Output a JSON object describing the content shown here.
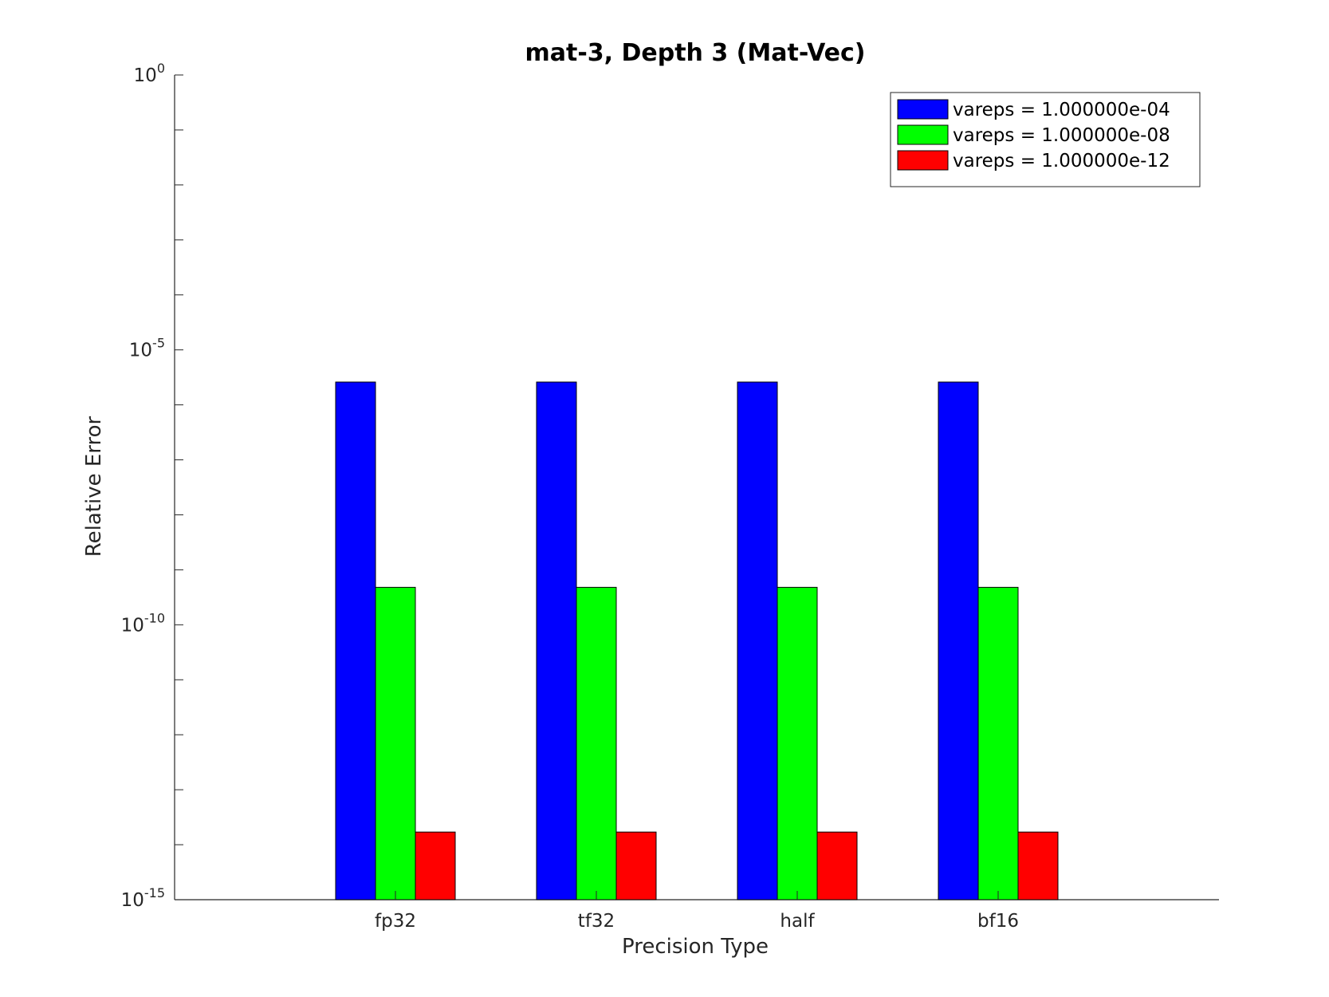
{
  "chart_data": {
    "type": "bar",
    "title": "mat-3, Depth 3 (Mat-Vec)",
    "xlabel": "Precision Type",
    "ylabel": "Relative Error",
    "categories": [
      "fp32",
      "tf32",
      "half",
      "bf16"
    ],
    "yscale": "log",
    "ylim": [
      1e-15,
      1
    ],
    "yticks": [
      {
        "base": "10",
        "exp": "0",
        "value": 1
      },
      {
        "base": "10",
        "exp": "-5",
        "value": 1e-05
      },
      {
        "base": "10",
        "exp": "-10",
        "value": 1e-10
      },
      {
        "base": "10",
        "exp": "-15",
        "value": 1e-15
      }
    ],
    "series": [
      {
        "name": "vareps = 1.000000e-04",
        "color": "#0000ff",
        "values": [
          2.6e-06,
          2.6e-06,
          2.6e-06,
          2.6e-06
        ]
      },
      {
        "name": "vareps = 1.000000e-08",
        "color": "#00ff00",
        "values": [
          4.8e-10,
          4.8e-10,
          4.8e-10,
          4.8e-10
        ]
      },
      {
        "name": "vareps = 1.000000e-12",
        "color": "#ff0000",
        "values": [
          1.7e-14,
          1.7e-14,
          1.7e-14,
          1.7e-14
        ]
      }
    ],
    "legend_position": "top-right",
    "grid": false
  }
}
